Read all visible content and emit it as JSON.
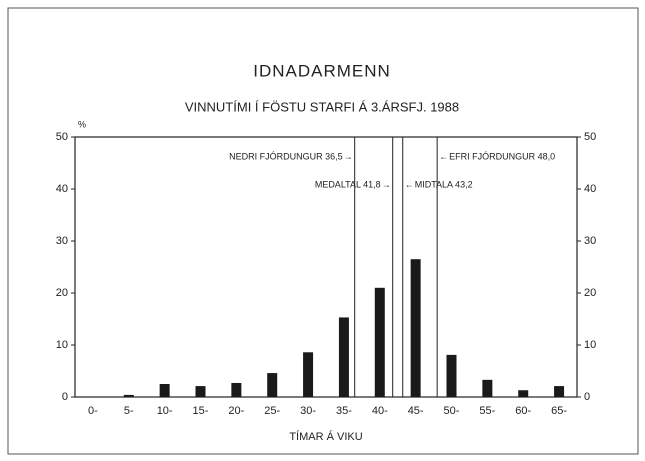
{
  "chart_data": {
    "type": "bar",
    "title": "IDNADARMENN",
    "subtitle": "VINNUTÍMI Í FÖSTU STARFI Á 3.ÁRSFJ. 1988",
    "x_label": "TÍMAR Á VIKU",
    "y_label": "%",
    "categories": [
      "0-",
      "5-",
      "10-",
      "15-",
      "20-",
      "25-",
      "30-",
      "35-",
      "40-",
      "45-",
      "50-",
      "55-",
      "60-",
      "65-"
    ],
    "values": [
      0,
      0.4,
      2.5,
      2.1,
      2.7,
      4.6,
      8.6,
      15.3,
      21.0,
      26.5,
      8.1,
      3.3,
      1.3,
      2.1
    ],
    "color": "#1a1a1a",
    "ylim": [
      0,
      50
    ],
    "yticks": [
      0,
      10,
      20,
      30,
      40,
      50
    ],
    "y2lim": [
      0,
      50
    ],
    "y2ticks": [
      0,
      10,
      20,
      30,
      40,
      50
    ],
    "markers": [
      {
        "label": "NEDRI FJÓRDUNGUR 36,5",
        "value": 36.5
      },
      {
        "label": "EFRI FJÓRDUNGUR 48,0",
        "value": 48.0
      },
      {
        "label": "MEDALTAL 41,8",
        "value": 41.8
      },
      {
        "label": "MIDTALA 43,2",
        "value": 43.2
      }
    ]
  }
}
